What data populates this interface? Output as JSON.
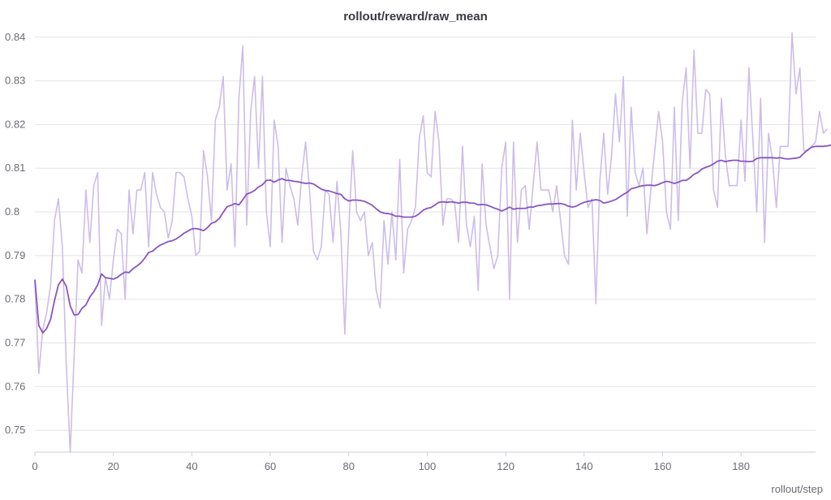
{
  "chart_data": {
    "type": "line",
    "title": "rollout/reward/raw_mean",
    "xlabel": "rollout/step",
    "ylabel": "",
    "xlim": [
      0,
      199
    ],
    "ylim": [
      0.745,
      0.842
    ],
    "x_ticks": [
      0,
      20,
      40,
      60,
      80,
      100,
      120,
      140,
      160,
      180
    ],
    "y_ticks": [
      0.75,
      0.76,
      0.77,
      0.78,
      0.79,
      0.8,
      0.81,
      0.82,
      0.83,
      0.84
    ],
    "y_tick_labels": [
      "0.75",
      "0.76",
      "0.77",
      "0.78",
      "0.79",
      "0.8",
      "0.81",
      "0.82",
      "0.83",
      "0.84"
    ],
    "grid": true,
    "series": [
      {
        "role": "raw",
        "color": "#cdbde8",
        "values": [
          0.784,
          0.763,
          0.773,
          0.777,
          0.783,
          0.798,
          0.803,
          0.792,
          0.765,
          0.745,
          0.767,
          0.789,
          0.786,
          0.805,
          0.793,
          0.806,
          0.809,
          0.774,
          0.785,
          0.78,
          0.789,
          0.796,
          0.795,
          0.78,
          0.805,
          0.795,
          0.805,
          0.805,
          0.809,
          0.792,
          0.809,
          0.804,
          0.801,
          0.8,
          0.794,
          0.798,
          0.809,
          0.809,
          0.808,
          0.803,
          0.799,
          0.79,
          0.791,
          0.814,
          0.808,
          0.798,
          0.821,
          0.824,
          0.831,
          0.805,
          0.811,
          0.792,
          0.826,
          0.838,
          0.797,
          0.823,
          0.831,
          0.81,
          0.831,
          0.8,
          0.792,
          0.821,
          0.815,
          0.793,
          0.81,
          0.806,
          0.803,
          0.797,
          0.808,
          0.816,
          0.805,
          0.791,
          0.789,
          0.792,
          0.805,
          0.804,
          0.793,
          0.807,
          0.795,
          0.772,
          0.796,
          0.814,
          0.8,
          0.798,
          0.8,
          0.79,
          0.793,
          0.782,
          0.778,
          0.798,
          0.788,
          0.8,
          0.789,
          0.812,
          0.786,
          0.796,
          0.798,
          0.801,
          0.817,
          0.822,
          0.809,
          0.808,
          0.823,
          0.816,
          0.797,
          0.803,
          0.803,
          0.802,
          0.793,
          0.815,
          0.797,
          0.792,
          0.799,
          0.782,
          0.811,
          0.797,
          0.792,
          0.787,
          0.79,
          0.81,
          0.816,
          0.78,
          0.816,
          0.793,
          0.805,
          0.806,
          0.796,
          0.806,
          0.816,
          0.805,
          0.805,
          0.805,
          0.8,
          0.806,
          0.798,
          0.79,
          0.788,
          0.821,
          0.805,
          0.818,
          0.809,
          0.801,
          0.803,
          0.779,
          0.807,
          0.818,
          0.804,
          0.813,
          0.827,
          0.816,
          0.831,
          0.799,
          0.824,
          0.809,
          0.806,
          0.81,
          0.795,
          0.805,
          0.814,
          0.823,
          0.816,
          0.8,
          0.796,
          0.824,
          0.798,
          0.825,
          0.833,
          0.81,
          0.837,
          0.818,
          0.818,
          0.828,
          0.827,
          0.805,
          0.801,
          0.826,
          0.813,
          0.806,
          0.806,
          0.806,
          0.821,
          0.807,
          0.833,
          0.817,
          0.8,
          0.826,
          0.793,
          0.818,
          0.812,
          0.801,
          0.815,
          0.815,
          0.815,
          0.841,
          0.827,
          0.833,
          0.814,
          0.814,
          0.815,
          0.816,
          0.823,
          0.818,
          0.819
        ]
      },
      {
        "role": "smoothed",
        "color": "#8856c2",
        "values": [
          0.7845,
          0.774,
          0.7723,
          0.7733,
          0.7754,
          0.7797,
          0.7833,
          0.7846,
          0.783,
          0.7785,
          0.7764,
          0.7765,
          0.7779,
          0.7787,
          0.7805,
          0.7817,
          0.7833,
          0.7858,
          0.7849,
          0.7848,
          0.7846,
          0.785,
          0.7857,
          0.7862,
          0.7861,
          0.787,
          0.7876,
          0.7883,
          0.7894,
          0.7907,
          0.791,
          0.7918,
          0.7924,
          0.7928,
          0.7932,
          0.7934,
          0.7938,
          0.7944,
          0.7951,
          0.7956,
          0.7961,
          0.7962,
          0.796,
          0.7957,
          0.7964,
          0.7974,
          0.7977,
          0.7985,
          0.7999,
          0.8012,
          0.8015,
          0.8019,
          0.8016,
          0.8028,
          0.8041,
          0.8044,
          0.8049,
          0.8057,
          0.8062,
          0.8072,
          0.8073,
          0.8068,
          0.8073,
          0.8076,
          0.8072,
          0.8072,
          0.807,
          0.8069,
          0.8067,
          0.8065,
          0.8066,
          0.8064,
          0.8058,
          0.8052,
          0.8049,
          0.8048,
          0.8045,
          0.8042,
          0.804,
          0.803,
          0.8025,
          0.8027,
          0.8027,
          0.8026,
          0.8024,
          0.802,
          0.8015,
          0.8007,
          0.8,
          0.7997,
          0.7996,
          0.7994,
          0.799,
          0.799,
          0.7988,
          0.7988,
          0.7988,
          0.799,
          0.7996,
          0.8004,
          0.8008,
          0.801,
          0.8016,
          0.8022,
          0.8023,
          0.8022,
          0.8023,
          0.8022,
          0.802,
          0.8022,
          0.8022,
          0.802,
          0.802,
          0.8016,
          0.8017,
          0.8016,
          0.8013,
          0.8009,
          0.8006,
          0.8002,
          0.8006,
          0.8011,
          0.8006,
          0.8008,
          0.8008,
          0.8008,
          0.8011,
          0.8011,
          0.8014,
          0.8015,
          0.8017,
          0.8018,
          0.8018,
          0.8019,
          0.8019,
          0.8017,
          0.8013,
          0.8011,
          0.8013,
          0.8018,
          0.8022,
          0.8024,
          0.8026,
          0.8028,
          0.8026,
          0.802,
          0.8022,
          0.8025,
          0.8028,
          0.8034,
          0.804,
          0.8045,
          0.8053,
          0.8055,
          0.8058,
          0.806,
          0.8061,
          0.8061,
          0.806,
          0.8063,
          0.8067,
          0.807,
          0.8068,
          0.8065,
          0.8068,
          0.8072,
          0.8072,
          0.8078,
          0.8086,
          0.809,
          0.8098,
          0.8102,
          0.8105,
          0.811,
          0.8116,
          0.8118,
          0.8115,
          0.8117,
          0.8118,
          0.8118,
          0.8116,
          0.8116,
          0.8115,
          0.8116,
          0.8122,
          0.8124,
          0.8124,
          0.8124,
          0.8124,
          0.8123,
          0.8124,
          0.8122,
          0.8121,
          0.8122,
          0.8123,
          0.8125,
          0.8134,
          0.8142,
          0.8148,
          0.815,
          0.815,
          0.815,
          0.8151,
          0.8153,
          0.8153,
          0.8154
        ]
      }
    ]
  },
  "colors": {
    "grid": "#e4e4e8",
    "axis": "#cfcfd6",
    "text": "#6b6b76",
    "title": "#3a3a44"
  }
}
